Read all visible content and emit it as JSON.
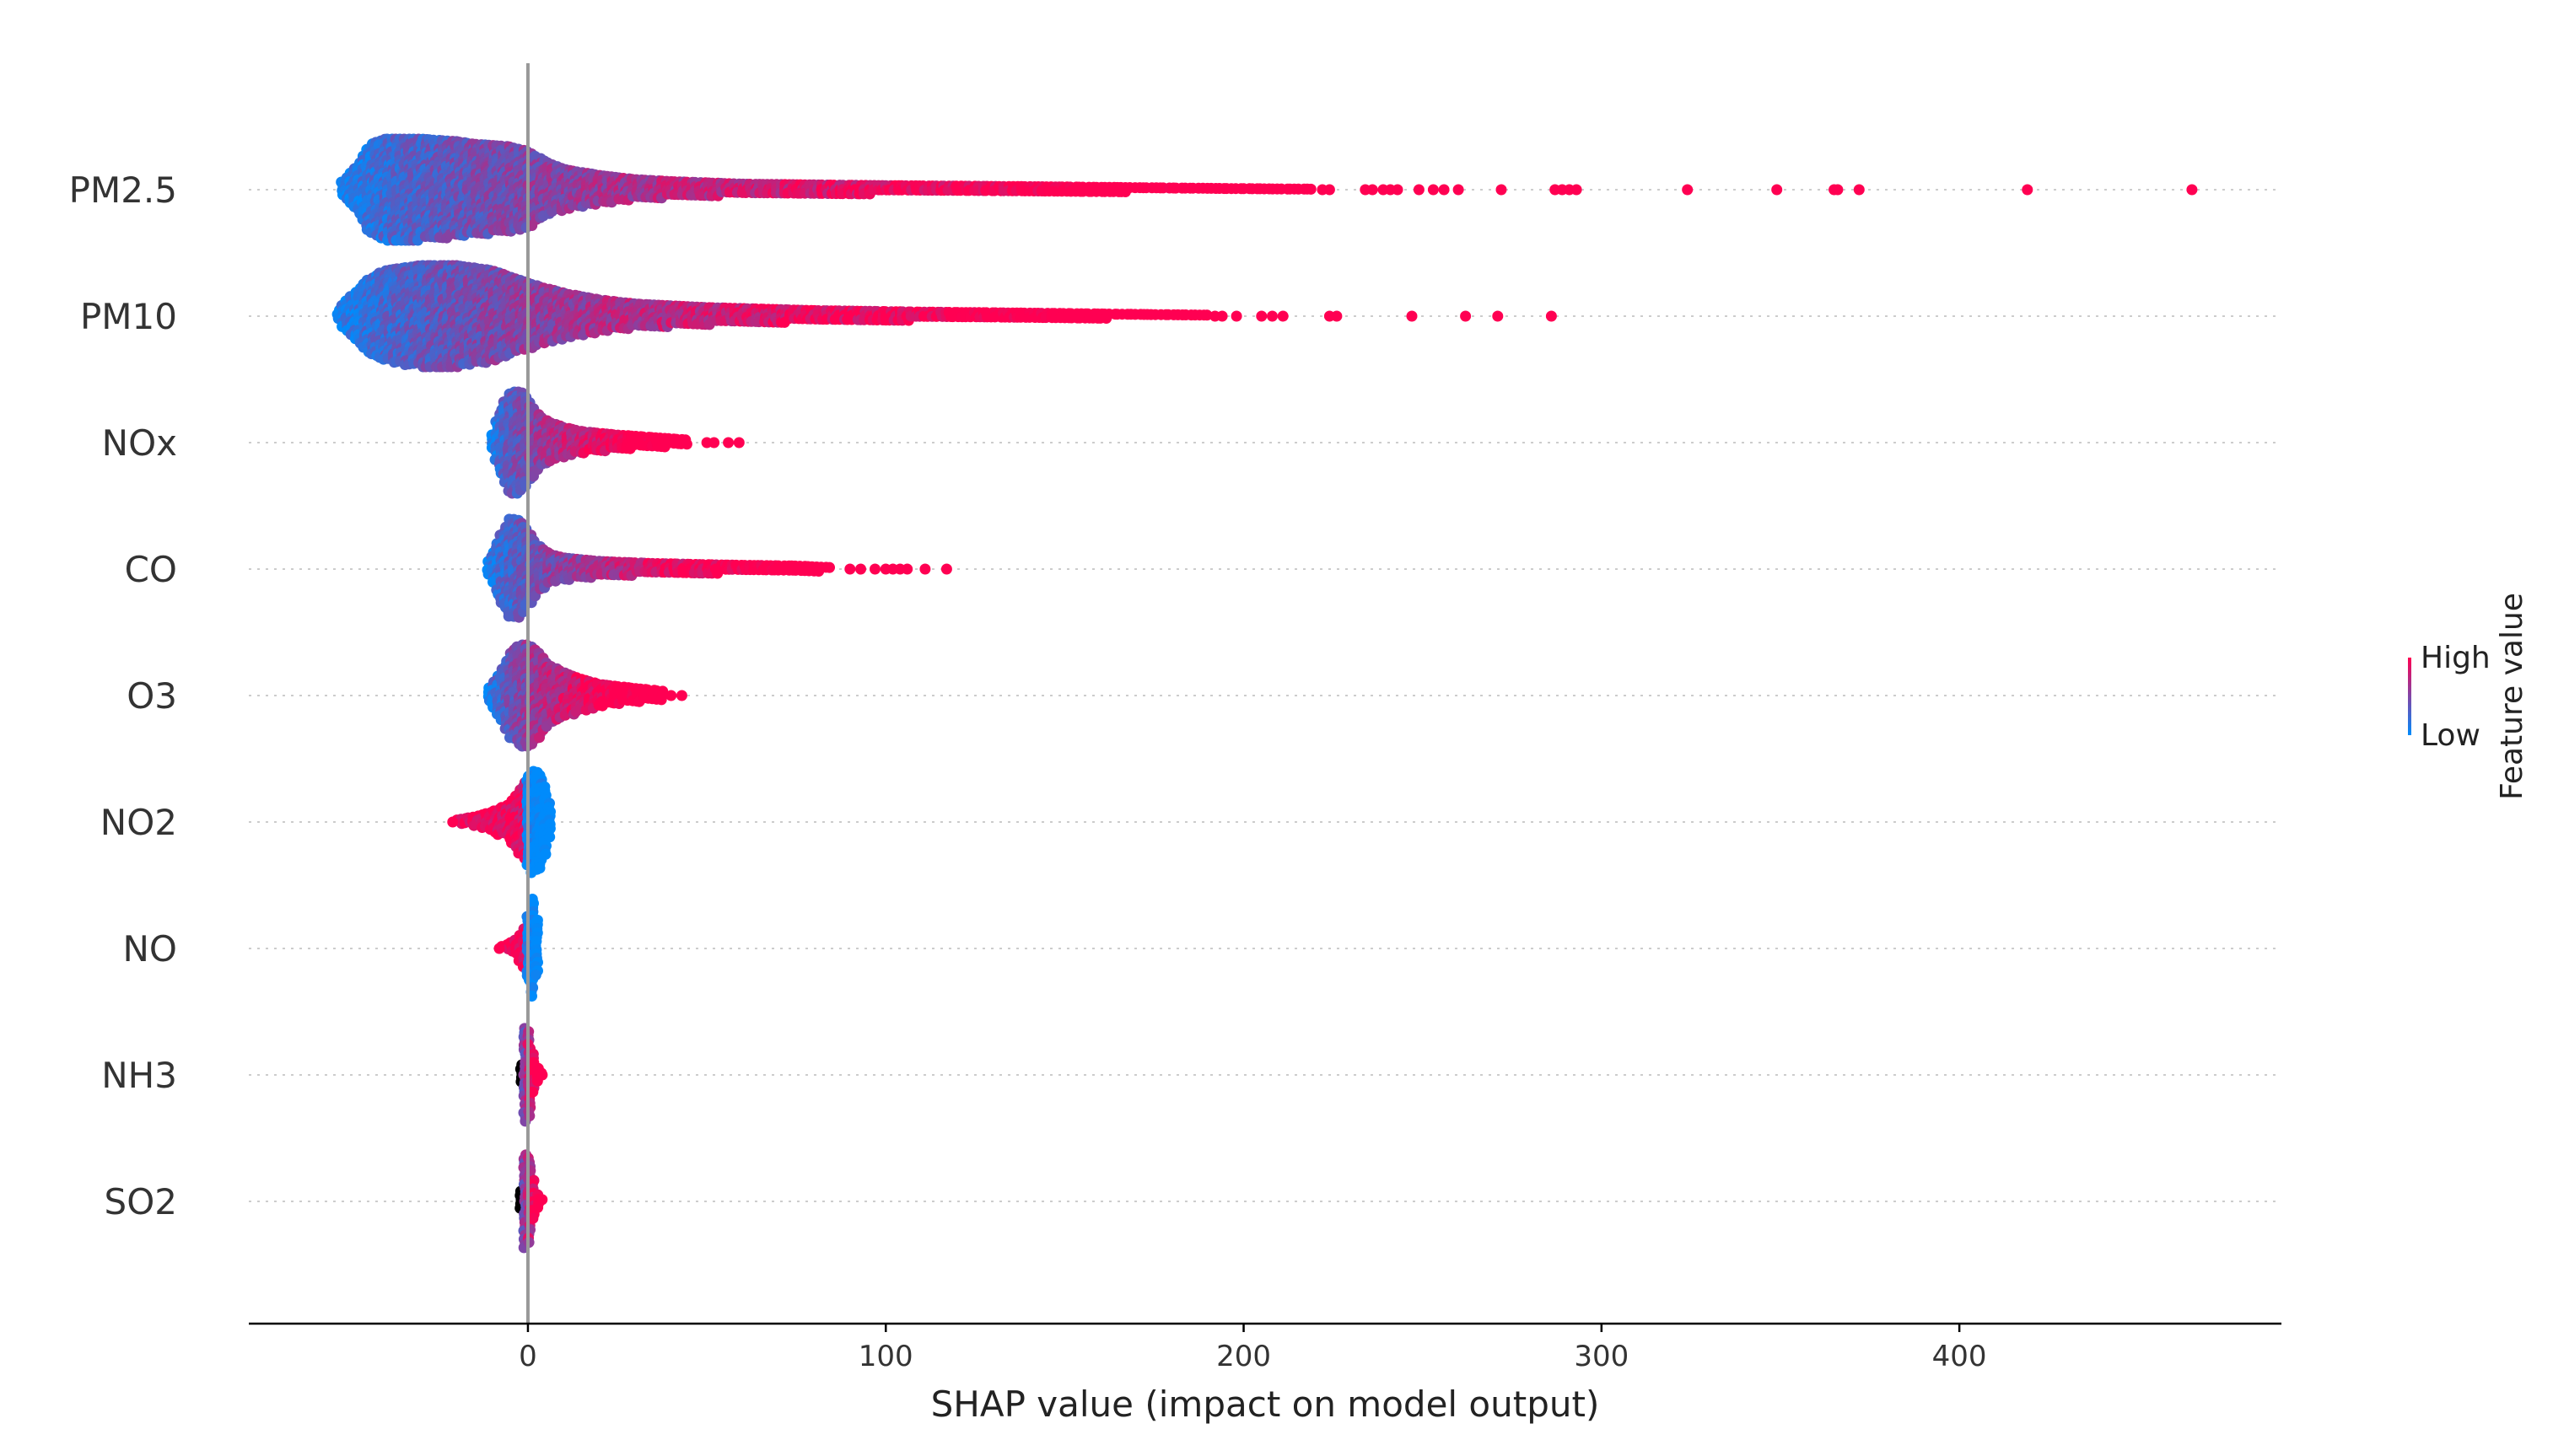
{
  "chart_data": {
    "type": "scatter",
    "subtype": "shap-beeswarm",
    "title": "",
    "xlabel": "SHAP value (impact on model output)",
    "ylabel": "",
    "xlim": [
      -78,
      490
    ],
    "xticks": [
      0,
      100,
      200,
      300,
      400
    ],
    "xtick_labels": [
      "0",
      "100",
      "200",
      "300",
      "400"
    ],
    "grid": "horizontal dotted row guides",
    "colorbar": {
      "title": "Feature value",
      "high_label": "High",
      "low_label": "Low",
      "placement": "right",
      "low_color": "#008bfb",
      "high_color": "#ff0052"
    },
    "colors": {
      "low": "#008bfb",
      "high": "#ff0052",
      "zero_line": "#999999",
      "axis": "#000000"
    },
    "features": [
      {
        "name": "PM2.5",
        "density": [
          [
            -52,
            0.15
          ],
          [
            -48,
            0.45
          ],
          [
            -44,
            0.9
          ],
          [
            -40,
            1.0
          ],
          [
            -30,
            1.0
          ],
          [
            -20,
            0.95
          ],
          [
            -15,
            0.9
          ],
          [
            -5,
            0.85
          ],
          [
            0,
            0.75
          ],
          [
            5,
            0.55
          ],
          [
            10,
            0.4
          ],
          [
            20,
            0.28
          ],
          [
            30,
            0.2
          ],
          [
            40,
            0.16
          ],
          [
            60,
            0.11
          ],
          [
            100,
            0.08
          ],
          [
            140,
            0.06
          ],
          [
            170,
            0.04
          ],
          [
            200,
            0.02
          ],
          [
            220,
            0.01
          ]
        ],
        "color_trend": "increasing",
        "outliers": [
          222,
          224,
          234,
          236,
          239,
          241,
          243,
          249,
          253,
          256,
          260,
          272,
          287,
          289,
          291,
          293,
          324,
          349,
          365,
          366,
          372,
          419,
          465
        ]
      },
      {
        "name": "PM10",
        "density": [
          [
            -53,
            0.12
          ],
          [
            -50,
            0.35
          ],
          [
            -45,
            0.7
          ],
          [
            -40,
            0.9
          ],
          [
            -30,
            1.0
          ],
          [
            -20,
            1.0
          ],
          [
            -10,
            0.9
          ],
          [
            0,
            0.65
          ],
          [
            10,
            0.45
          ],
          [
            20,
            0.32
          ],
          [
            30,
            0.24
          ],
          [
            50,
            0.17
          ],
          [
            80,
            0.11
          ],
          [
            110,
            0.08
          ],
          [
            140,
            0.06
          ],
          [
            170,
            0.035
          ],
          [
            190,
            0.02
          ]
        ],
        "color_trend": "increasing",
        "outliers": [
          192,
          194,
          198,
          205,
          208,
          211,
          224,
          226,
          247,
          262,
          271,
          286
        ]
      },
      {
        "name": "NOx",
        "density": [
          [
            -10,
            0.15
          ],
          [
            -8,
            0.6
          ],
          [
            -5,
            1.0
          ],
          [
            -2,
            1.0
          ],
          [
            0,
            0.85
          ],
          [
            3,
            0.55
          ],
          [
            6,
            0.4
          ],
          [
            10,
            0.3
          ],
          [
            15,
            0.22
          ],
          [
            25,
            0.15
          ],
          [
            35,
            0.1
          ],
          [
            45,
            0.05
          ]
        ],
        "color_trend": "increasing",
        "outliers": [
          50,
          52,
          56,
          59
        ]
      },
      {
        "name": "CO",
        "density": [
          [
            -11,
            0.15
          ],
          [
            -8,
            0.6
          ],
          [
            -5,
            1.0
          ],
          [
            -2,
            0.95
          ],
          [
            0,
            0.75
          ],
          [
            3,
            0.45
          ],
          [
            6,
            0.3
          ],
          [
            10,
            0.22
          ],
          [
            20,
            0.15
          ],
          [
            35,
            0.11
          ],
          [
            55,
            0.08
          ],
          [
            75,
            0.06
          ],
          [
            85,
            0.03
          ]
        ],
        "color_trend": "increasing",
        "outliers": [
          90,
          93,
          97,
          100,
          102,
          104,
          106,
          111,
          117
        ]
      },
      {
        "name": "O3",
        "density": [
          [
            -11,
            0.15
          ],
          [
            -8,
            0.45
          ],
          [
            -5,
            0.85
          ],
          [
            -2,
            1.0
          ],
          [
            0,
            1.0
          ],
          [
            3,
            0.85
          ],
          [
            6,
            0.6
          ],
          [
            10,
            0.45
          ],
          [
            15,
            0.32
          ],
          [
            20,
            0.22
          ],
          [
            30,
            0.14
          ],
          [
            38,
            0.08
          ]
        ],
        "color_trend": "increasing",
        "outliers": [
          40,
          43
        ]
      },
      {
        "name": "NO2",
        "density": [
          [
            -20,
            0.04
          ],
          [
            -15,
            0.1
          ],
          [
            -10,
            0.2
          ],
          [
            -6,
            0.32
          ],
          [
            -3,
            0.55
          ],
          [
            -1,
            0.8
          ],
          [
            0,
            0.9
          ],
          [
            1,
            1.0
          ],
          [
            2,
            1.0
          ],
          [
            4,
            0.9
          ],
          [
            6,
            0.35
          ],
          [
            7,
            0.1
          ]
        ],
        "color_trend": "decreasing",
        "outliers": [
          -21
        ]
      },
      {
        "name": "NO",
        "density": [
          [
            -7,
            0.04
          ],
          [
            -5,
            0.1
          ],
          [
            -3,
            0.18
          ],
          [
            -1,
            0.4
          ],
          [
            0,
            0.6
          ],
          [
            1,
            1.0
          ],
          [
            2,
            0.9
          ],
          [
            3,
            0.1
          ]
        ],
        "color_trend": "decreasing",
        "outliers": [
          -8
        ]
      },
      {
        "name": "NH3",
        "density": [
          [
            -2,
            0.2
          ],
          [
            -1,
            0.9
          ],
          [
            0,
            1.0
          ],
          [
            1,
            0.6
          ],
          [
            2,
            0.25
          ],
          [
            3,
            0.08
          ],
          [
            4,
            0.03
          ]
        ],
        "color_trend": "increasing",
        "outliers": [
          4
        ]
      },
      {
        "name": "SO2",
        "density": [
          [
            -2,
            0.2
          ],
          [
            -1,
            0.9
          ],
          [
            0,
            1.0
          ],
          [
            1,
            0.6
          ],
          [
            2,
            0.25
          ],
          [
            3,
            0.08
          ],
          [
            4,
            0.03
          ]
        ],
        "color_trend": "increasing",
        "outliers": []
      }
    ]
  }
}
